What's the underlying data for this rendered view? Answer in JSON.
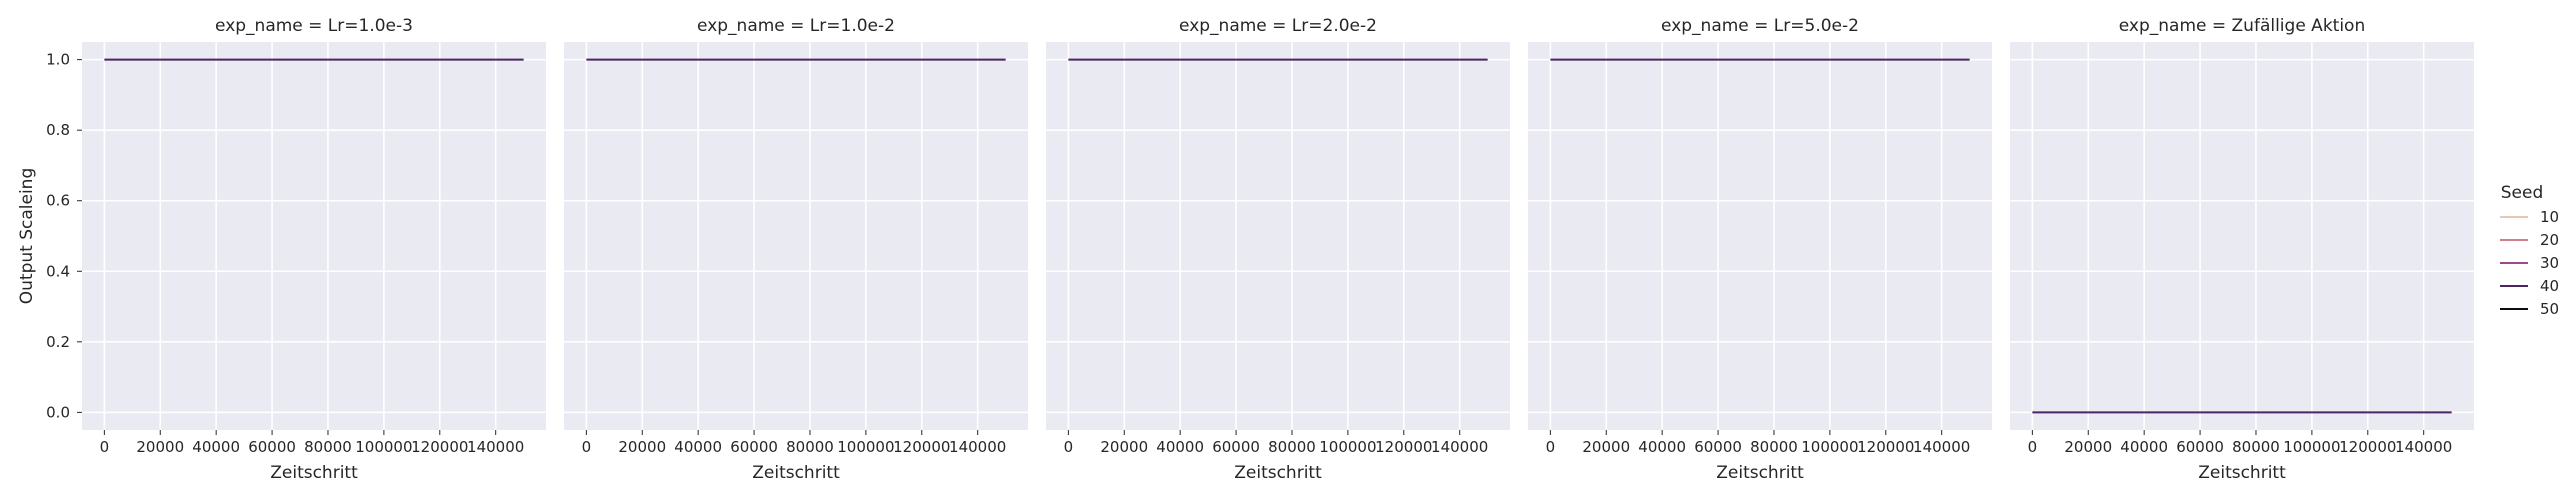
{
  "chart_data": {
    "type": "line",
    "ylabel": "Output Scaleing",
    "xlabel": "Zeitschritt",
    "xlim": [
      -8000,
      158000
    ],
    "ylim": [
      -0.05,
      1.05
    ],
    "xticks": [
      0,
      20000,
      40000,
      60000,
      80000,
      100000,
      120000,
      140000
    ],
    "yticks": [
      0.0,
      0.2,
      0.4,
      0.6,
      0.8,
      1.0
    ],
    "ytick_labels": [
      "0.0",
      "0.2",
      "0.4",
      "0.6",
      "0.8",
      "1.0"
    ],
    "grid": true,
    "legend": {
      "title": "Seed",
      "placement": "right",
      "entries": [
        {
          "label": "10",
          "color": "#e6c8b4"
        },
        {
          "label": "20",
          "color": "#cf7f8a"
        },
        {
          "label": "30",
          "color": "#9c4a8c"
        },
        {
          "label": "40",
          "color": "#4c2462"
        },
        {
          "label": "50",
          "color": "#0b0b14"
        }
      ]
    },
    "panels": [
      {
        "title": "exp_name = Lr=1.0e-3",
        "series": [
          {
            "name": "40",
            "x": [
              0,
              150000
            ],
            "y": [
              1.0,
              1.0
            ]
          }
        ]
      },
      {
        "title": "exp_name = Lr=1.0e-2",
        "series": [
          {
            "name": "40",
            "x": [
              0,
              150000
            ],
            "y": [
              1.0,
              1.0
            ]
          }
        ]
      },
      {
        "title": "exp_name = Lr=2.0e-2",
        "series": [
          {
            "name": "40",
            "x": [
              0,
              150000
            ],
            "y": [
              1.0,
              1.0
            ]
          }
        ]
      },
      {
        "title": "exp_name = Lr=5.0e-2",
        "series": [
          {
            "name": "40",
            "x": [
              0,
              150000
            ],
            "y": [
              1.0,
              1.0
            ]
          }
        ]
      },
      {
        "title": "exp_name = Zufällige Aktion",
        "series": [
          {
            "name": "40",
            "x": [
              0,
              150000
            ],
            "y": [
              0.0,
              0.0
            ]
          }
        ]
      }
    ]
  }
}
